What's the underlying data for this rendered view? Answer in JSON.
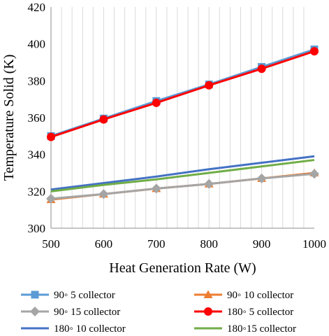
{
  "chart_data": {
    "type": "line",
    "title": "",
    "xlabel": "Heat Generation Rate (W)",
    "ylabel": "Temperature Solid (K)",
    "x": [
      500,
      600,
      700,
      800,
      900,
      1000
    ],
    "xlim": [
      500,
      1000
    ],
    "ylim": [
      300,
      420
    ],
    "xticks": [
      "500",
      "600",
      "700",
      "800",
      "900",
      "1000"
    ],
    "yticks": [
      "300",
      "320",
      "340",
      "360",
      "380",
      "400",
      "420"
    ],
    "grid": "vertical",
    "legend_position": "bottom",
    "series": [
      {
        "name": "90◦ 5 collector",
        "values": [
          350,
          359.5,
          369,
          378,
          387.5,
          397
        ],
        "color": "#5B9BD5",
        "marker": "square"
      },
      {
        "name": "90◦ 10 collector",
        "values": [
          315.5,
          318.5,
          321.5,
          324,
          327,
          330
        ],
        "color": "#ED7D31",
        "marker": "triangle"
      },
      {
        "name": "90◦ 15 collector",
        "values": [
          316,
          318.5,
          321.5,
          324,
          327,
          329.5
        ],
        "color": "#A5A5A5",
        "marker": "diamond"
      },
      {
        "name": "180◦ 5 collector",
        "values": [
          349.5,
          359,
          368,
          377.5,
          386.5,
          396
        ],
        "color": "#FF0000",
        "marker": "circle"
      },
      {
        "name": "180◦ 10 collector",
        "values": [
          321,
          324.5,
          328,
          332,
          335.5,
          339
        ],
        "color": "#4472C4",
        "marker": "none"
      },
      {
        "name": "180◦15 collector",
        "values": [
          320,
          323.5,
          326.5,
          330,
          333.5,
          337
        ],
        "color": "#70AD47",
        "marker": "none"
      }
    ]
  }
}
